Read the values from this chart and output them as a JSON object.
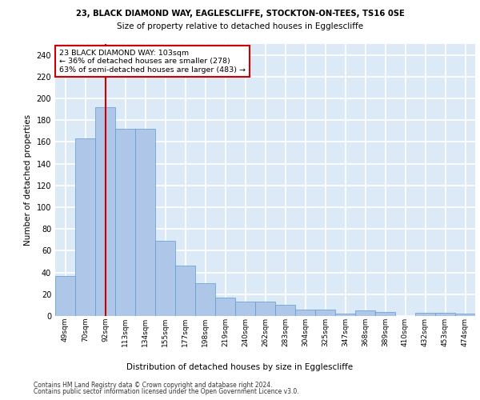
{
  "title1": "23, BLACK DIAMOND WAY, EAGLESCLIFFE, STOCKTON-ON-TEES, TS16 0SE",
  "title2": "Size of property relative to detached houses in Egglescliffe",
  "xlabel": "Distribution of detached houses by size in Egglescliffe",
  "ylabel": "Number of detached properties",
  "categories": [
    "49sqm",
    "70sqm",
    "92sqm",
    "113sqm",
    "134sqm",
    "155sqm",
    "177sqm",
    "198sqm",
    "219sqm",
    "240sqm",
    "262sqm",
    "283sqm",
    "304sqm",
    "325sqm",
    "347sqm",
    "368sqm",
    "389sqm",
    "410sqm",
    "432sqm",
    "453sqm",
    "474sqm"
  ],
  "values": [
    37,
    163,
    192,
    172,
    172,
    69,
    46,
    30,
    17,
    13,
    13,
    10,
    6,
    6,
    2,
    5,
    4,
    0,
    3,
    3,
    2
  ],
  "bar_color": "#aec6e8",
  "bar_edge_color": "#5b9bd5",
  "vline_x": 2,
  "vline_color": "#cc0000",
  "annotation_text": "23 BLACK DIAMOND WAY: 103sqm\n← 36% of detached houses are smaller (278)\n63% of semi-detached houses are larger (483) →",
  "annotation_box_color": "#ffffff",
  "annotation_box_edge": "#cc0000",
  "ylim": [
    0,
    250
  ],
  "yticks": [
    0,
    20,
    40,
    60,
    80,
    100,
    120,
    140,
    160,
    180,
    200,
    220,
    240
  ],
  "bg_color": "#dce9f7",
  "grid_color": "#ffffff",
  "footer1": "Contains HM Land Registry data © Crown copyright and database right 2024.",
  "footer2": "Contains public sector information licensed under the Open Government Licence v3.0."
}
